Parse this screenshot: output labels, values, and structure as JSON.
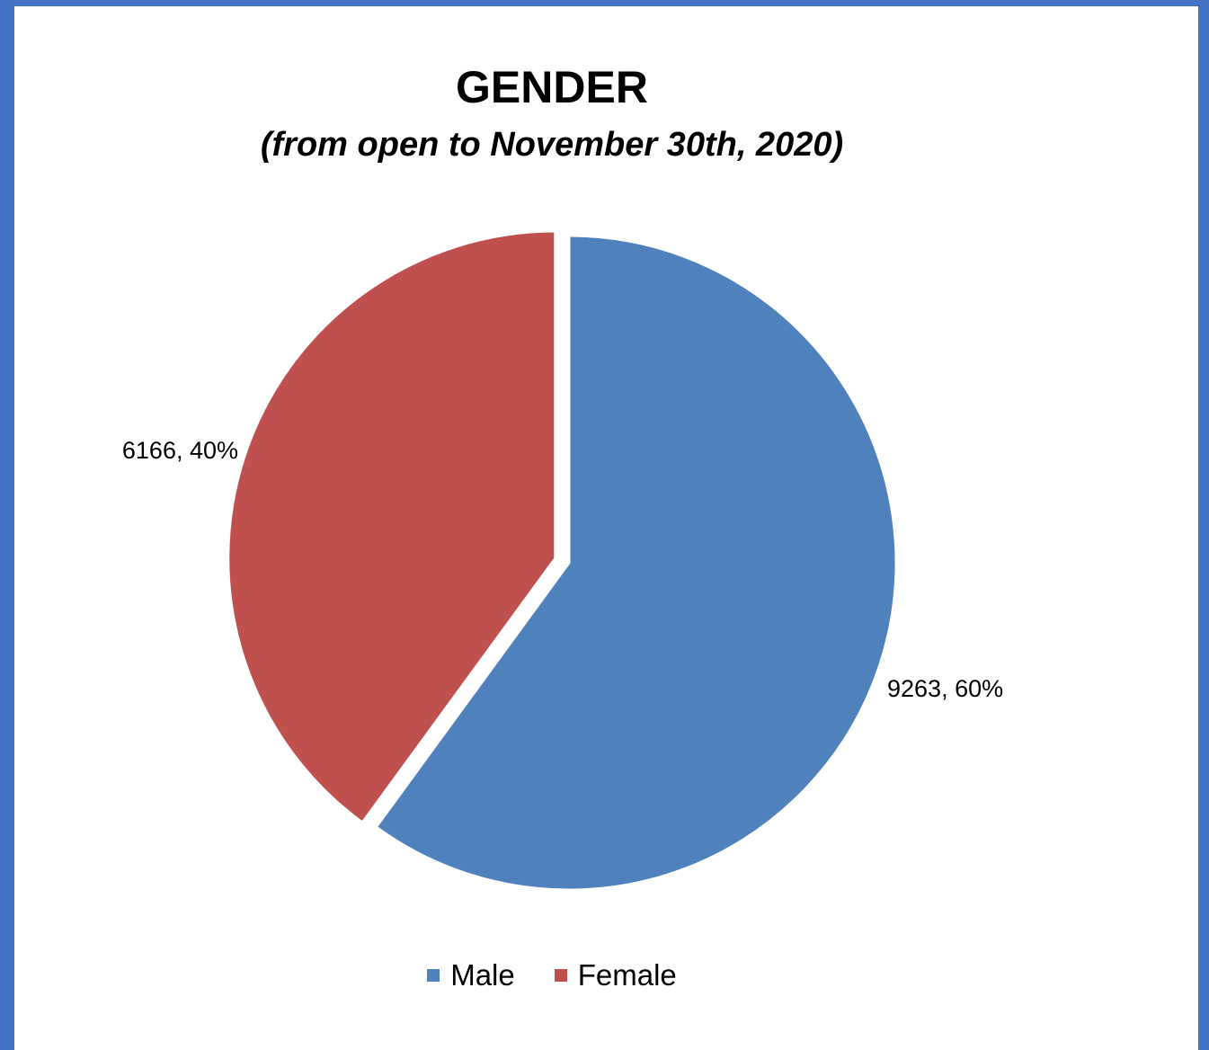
{
  "chart_data": {
    "type": "pie",
    "title": "GENDER",
    "subtitle": "(from open to November 30th, 2020)",
    "categories": [
      "Male",
      "Female"
    ],
    "values": [
      9263,
      6166
    ],
    "percentages": [
      "60%",
      "40%"
    ],
    "data_labels": [
      "9263, 60%",
      "6166, 40%"
    ],
    "colors": [
      "#4f81bd",
      "#c0504d"
    ],
    "legend": {
      "position": "bottom",
      "entries": [
        "Male",
        "Female"
      ]
    },
    "exploded_slice": "Female"
  }
}
